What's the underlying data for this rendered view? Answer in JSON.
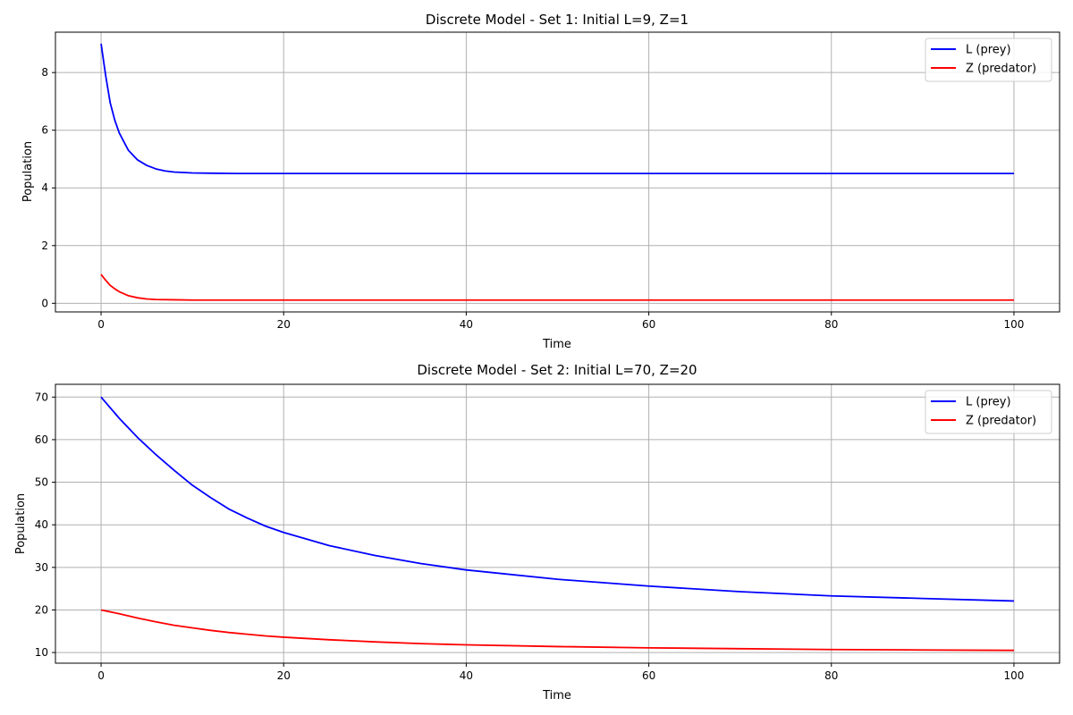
{
  "chart_data": [
    {
      "type": "line",
      "title": "Discrete Model - Set 1: Initial L=9, Z=1",
      "xlabel": "Time",
      "ylabel": "Population",
      "xlim": [
        -5,
        105
      ],
      "ylim": [
        -0.3,
        9.4
      ],
      "xticks": [
        0,
        20,
        40,
        60,
        80,
        100
      ],
      "yticks": [
        0,
        2,
        4,
        6,
        8
      ],
      "grid": true,
      "legend_position": "top-right",
      "series": [
        {
          "name": "L (prey)",
          "color": "#0000ff",
          "points": [
            [
              0,
              9.0
            ],
            [
              0.5,
              7.9
            ],
            [
              1,
              6.95
            ],
            [
              1.5,
              6.35
            ],
            [
              2,
              5.9
            ],
            [
              3,
              5.3
            ],
            [
              4,
              4.97
            ],
            [
              5,
              4.78
            ],
            [
              6,
              4.66
            ],
            [
              7,
              4.59
            ],
            [
              8,
              4.55
            ],
            [
              10,
              4.52
            ],
            [
              12,
              4.51
            ],
            [
              15,
              4.5
            ],
            [
              20,
              4.5
            ],
            [
              40,
              4.5
            ],
            [
              60,
              4.5
            ],
            [
              80,
              4.5
            ],
            [
              100,
              4.5
            ]
          ]
        },
        {
          "name": "Z (predator)",
          "color": "#ff0000",
          "points": [
            [
              0,
              1.0
            ],
            [
              0.5,
              0.8
            ],
            [
              1,
              0.62
            ],
            [
              1.5,
              0.5
            ],
            [
              2,
              0.4
            ],
            [
              3,
              0.26
            ],
            [
              4,
              0.19
            ],
            [
              5,
              0.15
            ],
            [
              6,
              0.13
            ],
            [
              8,
              0.12
            ],
            [
              10,
              0.11
            ],
            [
              15,
              0.11
            ],
            [
              20,
              0.11
            ],
            [
              40,
              0.11
            ],
            [
              60,
              0.11
            ],
            [
              80,
              0.11
            ],
            [
              100,
              0.11
            ]
          ]
        }
      ]
    },
    {
      "type": "line",
      "title": "Discrete Model - Set 2: Initial L=70, Z=20",
      "xlabel": "Time",
      "ylabel": "Population",
      "xlim": [
        -5,
        105
      ],
      "ylim": [
        7.5,
        73
      ],
      "xticks": [
        0,
        20,
        40,
        60,
        80,
        100
      ],
      "yticks": [
        10,
        20,
        30,
        40,
        50,
        60,
        70
      ],
      "grid": true,
      "legend_position": "top-right",
      "series": [
        {
          "name": "L (prey)",
          "color": "#0000ff",
          "points": [
            [
              0,
              70
            ],
            [
              2,
              65
            ],
            [
              4,
              60.5
            ],
            [
              6,
              56.5
            ],
            [
              8,
              52.8
            ],
            [
              10,
              49.3
            ],
            [
              12,
              46.4
            ],
            [
              14,
              43.7
            ],
            [
              16,
              41.6
            ],
            [
              18,
              39.7
            ],
            [
              20,
              38.2
            ],
            [
              25,
              35.1
            ],
            [
              30,
              32.8
            ],
            [
              35,
              30.9
            ],
            [
              40,
              29.4
            ],
            [
              50,
              27.2
            ],
            [
              60,
              25.6
            ],
            [
              70,
              24.3
            ],
            [
              80,
              23.3
            ],
            [
              90,
              22.7
            ],
            [
              100,
              22.1
            ]
          ]
        },
        {
          "name": "Z (predator)",
          "color": "#ff0000",
          "points": [
            [
              0,
              20
            ],
            [
              2,
              19.1
            ],
            [
              4,
              18.1
            ],
            [
              6,
              17.2
            ],
            [
              8,
              16.4
            ],
            [
              10,
              15.8
            ],
            [
              12,
              15.2
            ],
            [
              14,
              14.7
            ],
            [
              16,
              14.3
            ],
            [
              18,
              13.9
            ],
            [
              20,
              13.6
            ],
            [
              25,
              13.0
            ],
            [
              30,
              12.5
            ],
            [
              35,
              12.1
            ],
            [
              40,
              11.8
            ],
            [
              50,
              11.4
            ],
            [
              60,
              11.1
            ],
            [
              70,
              10.9
            ],
            [
              80,
              10.7
            ],
            [
              90,
              10.6
            ],
            [
              100,
              10.5
            ]
          ]
        }
      ]
    }
  ]
}
